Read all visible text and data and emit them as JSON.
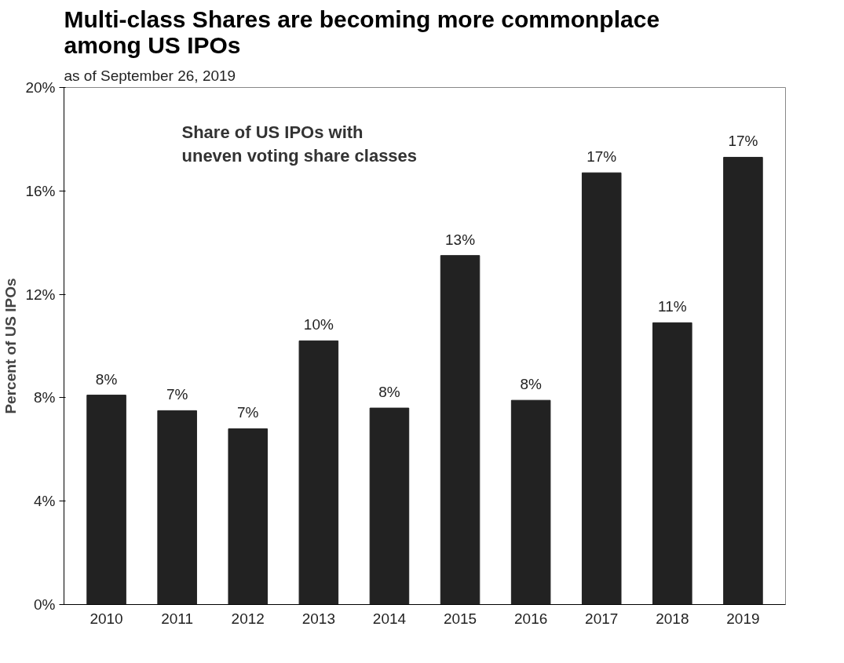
{
  "chart_data": {
    "type": "bar",
    "title": "Multi-class Shares are becoming more commonplace among US IPOs",
    "subtitle": "as of September 26, 2019",
    "ylabel": "Percent of US IPOs",
    "categories": [
      "2010",
      "2011",
      "2012",
      "2013",
      "2014",
      "2015",
      "2016",
      "2017",
      "2018",
      "2019"
    ],
    "values": [
      8.1,
      7.5,
      6.8,
      10.2,
      7.6,
      13.5,
      7.9,
      16.7,
      10.9,
      17.3
    ],
    "value_labels": [
      "8%",
      "7%",
      "7%",
      "10%",
      "8%",
      "13%",
      "8%",
      "17%",
      "11%",
      "17%"
    ],
    "color": "#222222",
    "ylim": [
      0,
      20
    ],
    "yticks": [
      {
        "value": 0,
        "label": "0%"
      },
      {
        "value": 4,
        "label": "4%"
      },
      {
        "value": 8,
        "label": "8%"
      },
      {
        "value": 12,
        "label": "12%"
      },
      {
        "value": 16,
        "label": "16%"
      },
      {
        "value": 20,
        "label": "20%"
      }
    ],
    "grid": false,
    "annotations": [
      "Share of US IPOs with uneven voting share classes"
    ]
  }
}
